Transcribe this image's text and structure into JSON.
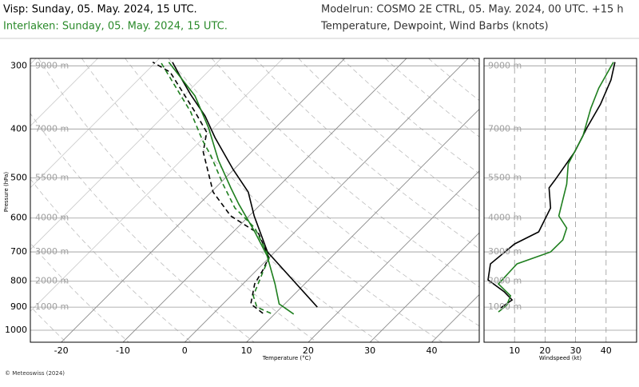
{
  "header": {
    "left_1": "Visp: Sunday, 05. May. 2024, 15 UTC.",
    "left_2": "Interlaken: Sunday, 05. May. 2024, 15 UTC.",
    "right_1": "Modelrun: COSMO 2E CTRL, 05. May. 2024, 00 UTC. +15 h",
    "right_2": "Temperature, Dewpoint, Wind Barbs (knots)"
  },
  "footer": "© Meteoswiss (2024)",
  "chart_data": [
    {
      "type": "skewt",
      "xlabel": "Temperature (°C)",
      "ylabel": "Pressure (hPa)",
      "xlim": [
        -25,
        47.7
      ],
      "xticks": [
        -20,
        -10,
        0,
        10,
        20,
        30,
        40
      ],
      "ylim": [
        290,
        1056
      ],
      "ylog": true,
      "yticks": [
        300,
        400,
        500,
        600,
        700,
        800,
        900,
        1000
      ],
      "height_labels": [
        {
          "value": 300,
          "label": "9000 m"
        },
        {
          "value": 400,
          "label": "7000 m"
        },
        {
          "value": 500,
          "label": "5500 m"
        },
        {
          "value": 600,
          "label": "4000 m"
        },
        {
          "value": 700,
          "label": "3000 m"
        },
        {
          "value": 800,
          "label": "2000 m"
        },
        {
          "value": 900,
          "label": "1000 m"
        }
      ],
      "series": [
        {
          "color": "#000000",
          "dashed": false,
          "x": [
            15.8,
            -1.2,
            -9.2,
            -14.0,
            -20.1,
            -28.2,
            -33.3,
            -39.1,
            -43.7,
            -47.3
          ],
          "y": [
            900,
            700,
            594,
            533,
            481,
            416,
            377,
            342,
            315,
            295
          ]
        },
        {
          "color": "#000000",
          "dashed": true,
          "x": [
            8.0,
            4.5,
            1.9,
            1.0,
            -0.1,
            -5.6,
            -13.0,
            -19.7,
            -23.7,
            -27.8,
            -30.4,
            -35.6,
            -46.0,
            -50.5
          ],
          "y": [
            926,
            887,
            810,
            761,
            718,
            644,
            594,
            533,
            487,
            444,
            406,
            370,
            309,
            295
          ]
        },
        {
          "color": "#1f7f1f",
          "dashed": false,
          "x": [
            13.1,
            9.1,
            5.2,
            -0.6,
            -6.5,
            -13.6,
            -17.5,
            -24.0,
            -30.8,
            -38.2,
            -47.9
          ],
          "y": [
            929,
            887,
            810,
            713,
            639,
            563,
            523,
            461,
            398,
            344,
            295
          ]
        },
        {
          "color": "#1f7f1f",
          "dashed": true,
          "x": [
            9.3,
            6.0,
            3.6,
            1.3,
            0,
            -7.1,
            -13.6,
            -19.4,
            -25.9,
            -29.8,
            -36.3,
            -49.2
          ],
          "y": [
            926,
            900,
            855,
            767,
            718,
            628,
            573,
            514,
            452,
            421,
            370,
            295
          ]
        }
      ]
    },
    {
      "type": "profile",
      "xlabel": "Windspeed (kt)",
      "xlim": [
        0,
        50
      ],
      "xticks": [
        10,
        20,
        30,
        40
      ],
      "ylim": [
        290,
        1056
      ],
      "ylog": true,
      "yticks": [
        300,
        400,
        500,
        600,
        700,
        800,
        900,
        1000
      ],
      "height_labels": [
        {
          "value": 300,
          "label": "9000 m"
        },
        {
          "value": 400,
          "label": "7000 m"
        },
        {
          "value": 500,
          "label": "5500 m"
        },
        {
          "value": 600,
          "label": "4000 m"
        },
        {
          "value": 700,
          "label": "3000 m"
        },
        {
          "value": 800,
          "label": "2000 m"
        },
        {
          "value": 900,
          "label": "1000 m"
        }
      ],
      "series": [
        {
          "color": "#000000",
          "dashed": false,
          "x": [
            5.5,
            9.2,
            6.6,
            1.3,
            2.1,
            10,
            17.9,
            21.8,
            21.3,
            23.2,
            29.7,
            33.7,
            38.2,
            41.6,
            42.9
          ],
          "y": [
            903,
            871,
            839,
            795,
            739,
            675,
            639,
            573,
            523,
            505,
            444,
            398,
            357,
            320,
            295
          ]
        },
        {
          "color": "#1f7f1f",
          "dashed": false,
          "x": [
            4.7,
            7.4,
            8.7,
            4.7,
            10.8,
            21.8,
            25.8,
            27.1,
            24.5,
            27.1,
            27.6,
            32.4,
            35,
            37.6,
            42.4
          ],
          "y": [
            920,
            893,
            855,
            810,
            739,
            700,
            663,
            628,
            594,
            514,
            469,
            413,
            364,
            332,
            295
          ]
        }
      ]
    }
  ]
}
